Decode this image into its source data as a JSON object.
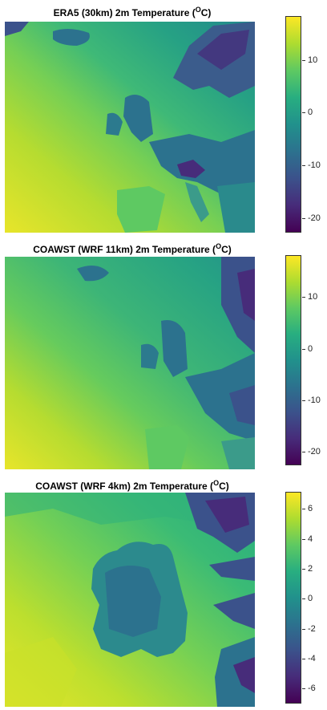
{
  "colors": {
    "viridis": [
      "#440154",
      "#472c7a",
      "#3b528b",
      "#2c728e",
      "#21918c",
      "#28ae80",
      "#5ec962",
      "#addc30",
      "#fde725"
    ]
  },
  "panels": [
    {
      "title_prefix": "ERA5 (30km) 2m Temperature (",
      "title_sup": "O",
      "title_suffix": "C)",
      "colorbar": {
        "min": -23,
        "max": 18,
        "ticks": [
          "10",
          "0",
          "-10",
          "-20"
        ],
        "tick_values": [
          10,
          0,
          -10,
          -20
        ]
      }
    },
    {
      "title_prefix": "COAWST (WRF 11km) 2m Temperature (",
      "title_sup": "O",
      "title_suffix": "C)",
      "colorbar": {
        "min": -23,
        "max": 18,
        "ticks": [
          "10",
          "0",
          "-10",
          "-20"
        ],
        "tick_values": [
          10,
          0,
          -10,
          -20
        ]
      }
    },
    {
      "title_prefix": "COAWST (WRF 4km) 2m Temperature (",
      "title_sup": "O",
      "title_suffix": "C)",
      "colorbar": {
        "min": -7,
        "max": 7,
        "ticks": [
          "6",
          "4",
          "2",
          "0",
          "-2",
          "-4",
          "-6"
        ],
        "tick_values": [
          6,
          4,
          2,
          0,
          -2,
          -4,
          -6
        ]
      }
    }
  ]
}
